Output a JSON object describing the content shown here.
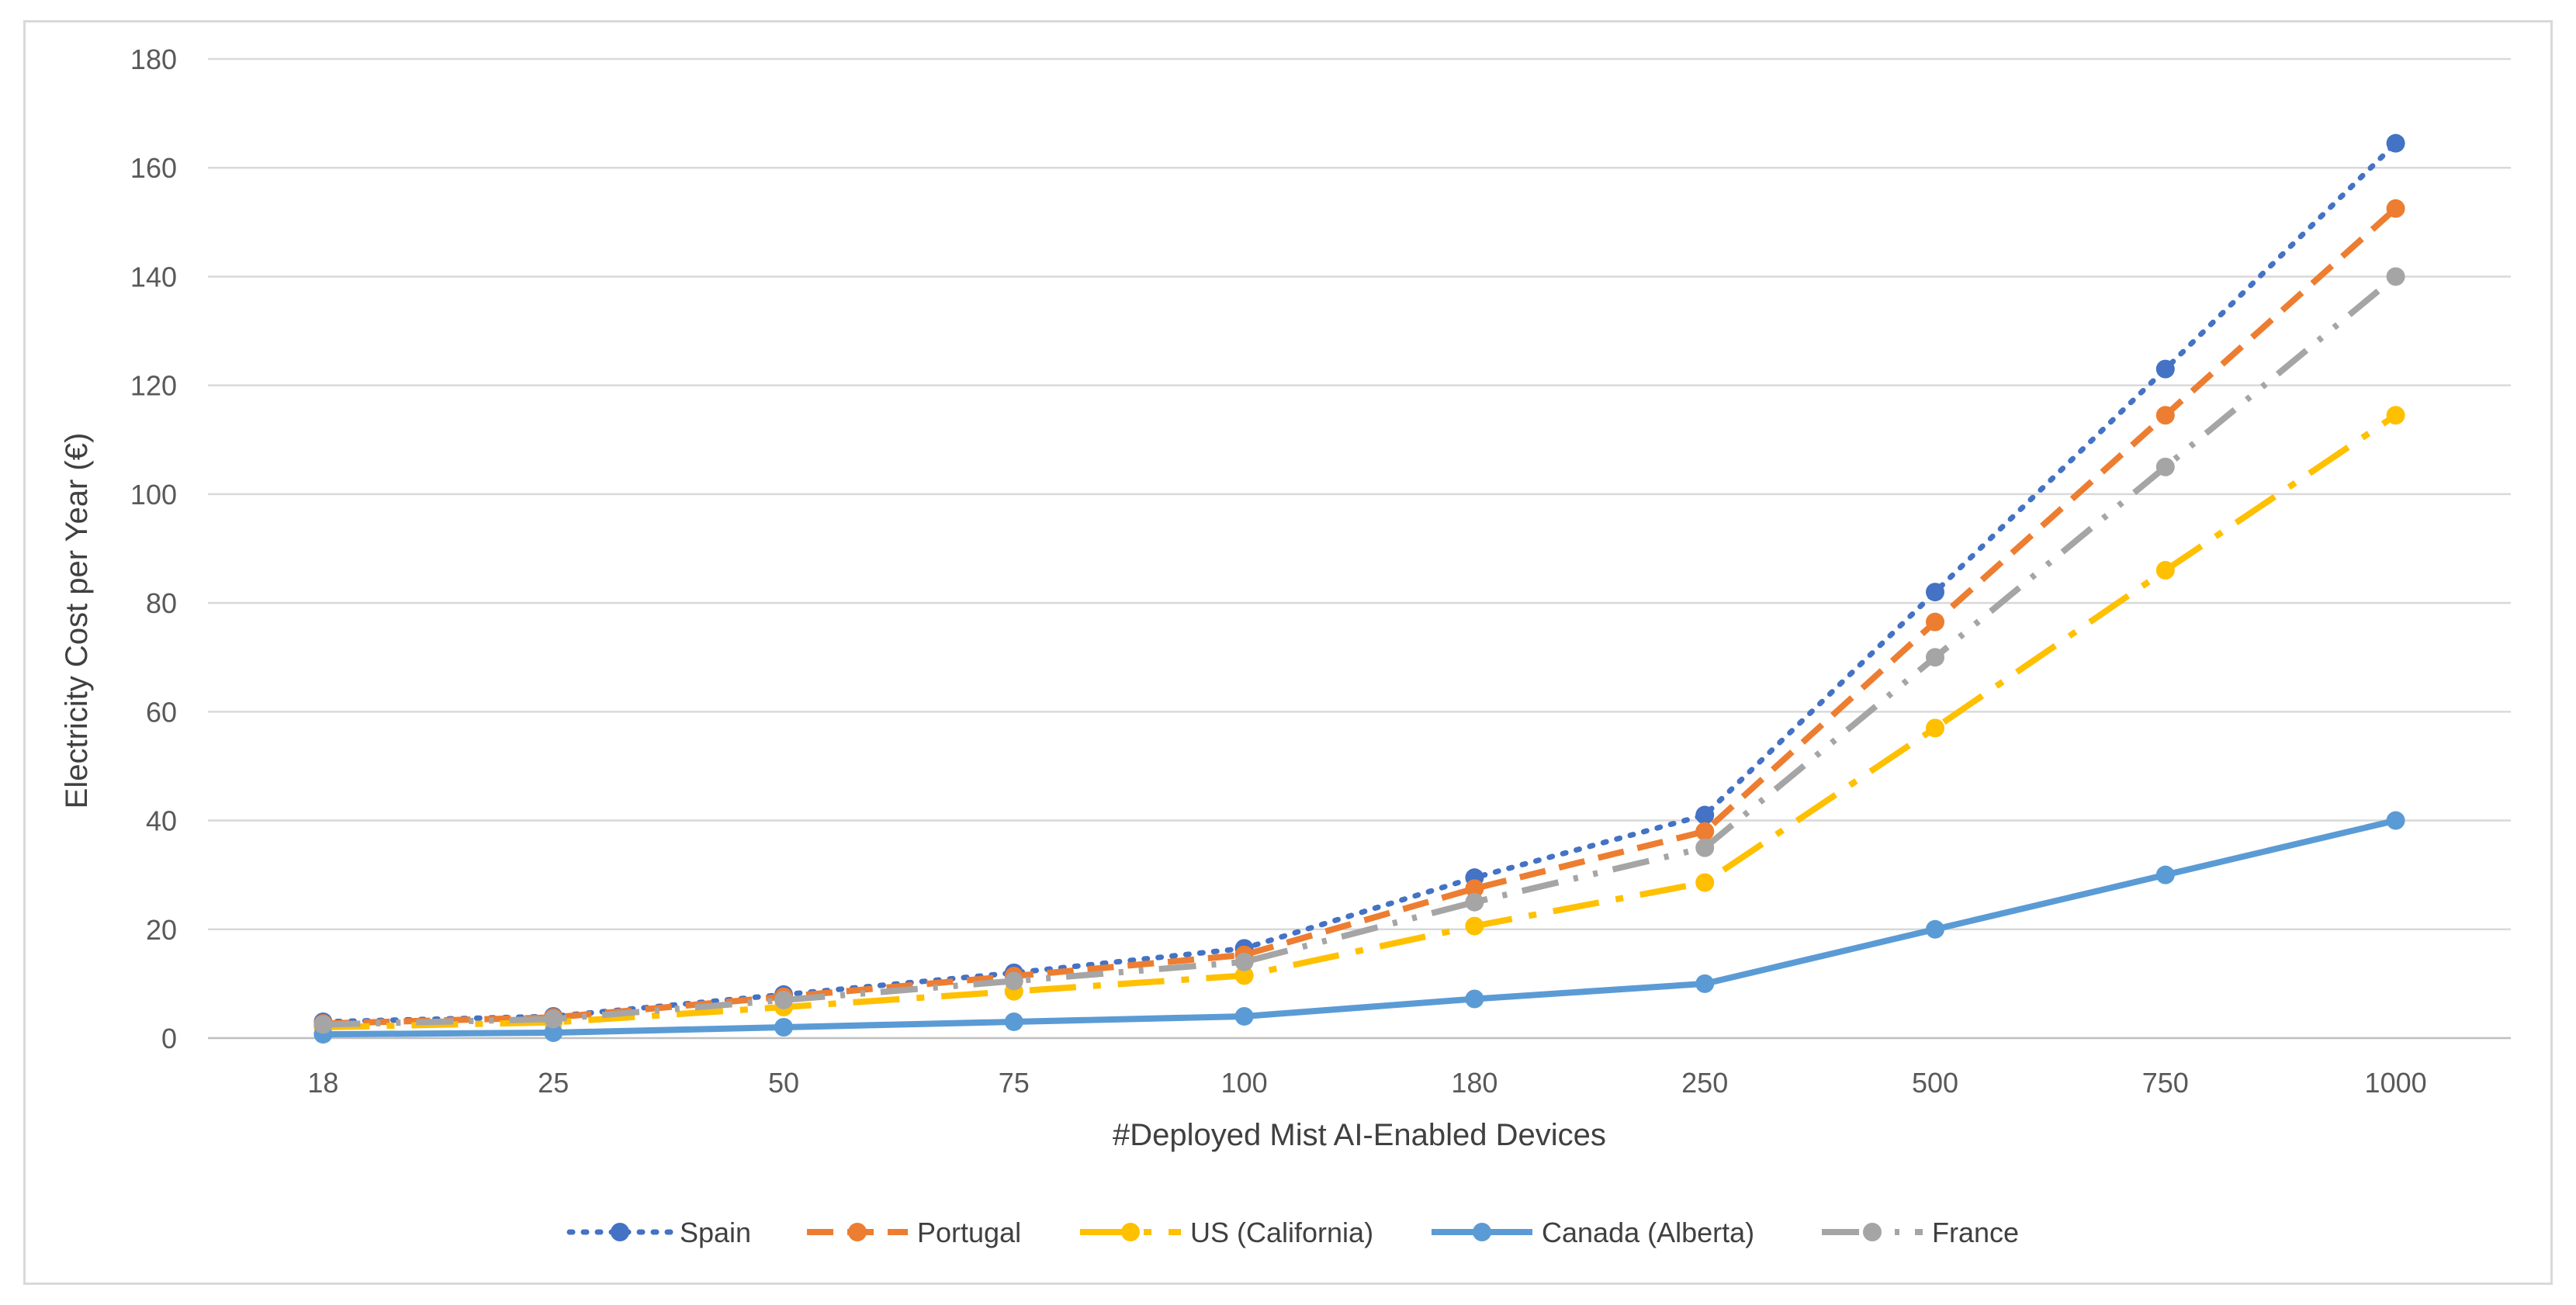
{
  "chart_data": {
    "type": "line",
    "title": "",
    "xlabel": "#Deployed Mist AI-Enabled Devices",
    "ylabel": "Electricity Cost per Year (€)",
    "categories": [
      "18",
      "25",
      "50",
      "75",
      "100",
      "180",
      "250",
      "500",
      "750",
      "1000"
    ],
    "ylim": [
      0,
      180
    ],
    "yticks": [
      0,
      20,
      40,
      60,
      80,
      100,
      120,
      140,
      160,
      180
    ],
    "grid": true,
    "legend_position": "bottom",
    "series": [
      {
        "name": "Spain",
        "color": "#4472C4",
        "dash": "dotted",
        "values": [
          3,
          4,
          8,
          12,
          16.5,
          29.5,
          41,
          82,
          123,
          164.5
        ]
      },
      {
        "name": "Portugal",
        "color": "#ED7D31",
        "dash": "dashed",
        "values": [
          2.7,
          3.8,
          7.6,
          11.4,
          15.3,
          27.5,
          38,
          76.5,
          114.5,
          152.5
        ]
      },
      {
        "name": "US (California)",
        "color": "#FFC000",
        "dash": "long-dash-dot",
        "values": [
          2,
          2.9,
          5.7,
          8.6,
          11.5,
          20.6,
          28.6,
          57,
          86,
          114.5
        ]
      },
      {
        "name": "Canada (Alberta)",
        "color": "#5B9BD5",
        "dash": "solid",
        "values": [
          0.7,
          1,
          2,
          3,
          4,
          7.2,
          10,
          20,
          30,
          40
        ]
      },
      {
        "name": "France",
        "color": "#A5A5A5",
        "dash": "long-dash-dot-dot",
        "values": [
          2.5,
          3.5,
          7,
          10.5,
          14,
          25,
          35,
          70,
          105,
          140
        ]
      }
    ]
  }
}
